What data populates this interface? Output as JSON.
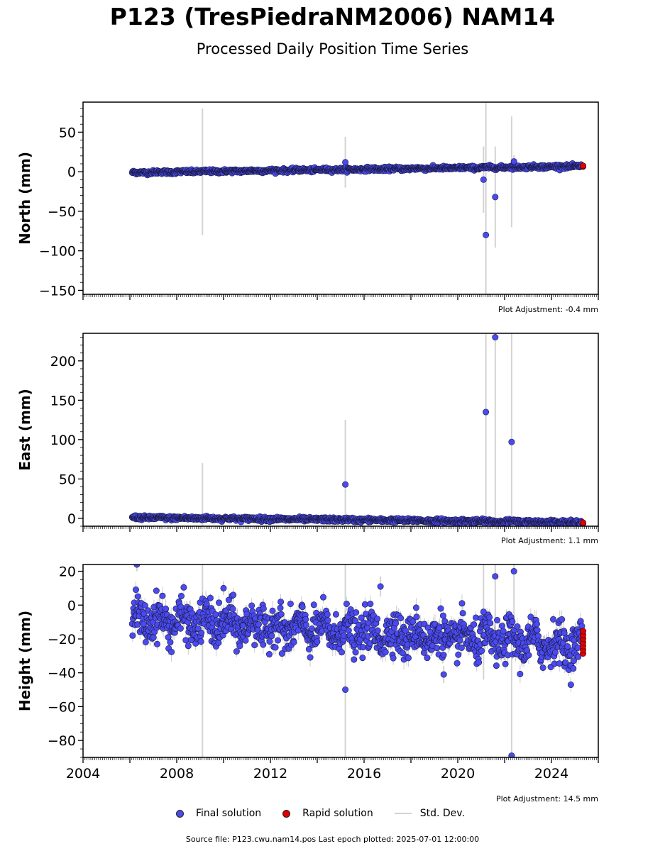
{
  "title": "P123 (TresPiedraNM2006) NAM14",
  "subtitle": "Processed Daily Position Time Series",
  "legend": {
    "final": "Final solution",
    "rapid": "Rapid solution",
    "stddev": "Std. Dev."
  },
  "footer": "Source file: P123.cwu.nam14.pos  Last epoch plotted: 2025-07-01 12:00:00",
  "colors": {
    "final": "#4a4af0",
    "rapid": "#e00000",
    "stddev": "#d3d3d3"
  },
  "chart_data": [
    {
      "type": "scatter",
      "ylabel": "North (mm)",
      "xlim": [
        2004.0,
        2026.0
      ],
      "ylim": [
        -155,
        88
      ],
      "yticks": [
        50,
        0,
        -50,
        -100,
        -150
      ],
      "ytick_labels": [
        "50",
        "0",
        "−50",
        "−100",
        "−150"
      ],
      "adjustment": "Plot Adjustment: -0.4 mm",
      "trend": {
        "start": [
          2006.1,
          -1
        ],
        "end": [
          2025.3,
          7
        ],
        "scatter_std": 1.2
      },
      "outliers": [
        {
          "x": 2015.2,
          "y": 12,
          "err": 32
        },
        {
          "x": 2021.1,
          "y": -10,
          "err": 42
        },
        {
          "x": 2021.2,
          "y": -80,
          "err": 170
        },
        {
          "x": 2021.6,
          "y": -32,
          "err": 64
        },
        {
          "x": 2022.4,
          "y": 13,
          "err": 8
        }
      ],
      "errorbars_only": [
        {
          "x": 2009.1,
          "y": 0,
          "err": 80
        },
        {
          "x": 2022.3,
          "y": 0,
          "err": 70
        }
      ],
      "rapid": {
        "x": 2025.35,
        "y": 7,
        "count": 4
      }
    },
    {
      "type": "scatter",
      "ylabel": "East (mm)",
      "xlim": [
        2004.0,
        2026.0
      ],
      "ylim": [
        -10,
        235
      ],
      "yticks": [
        200,
        150,
        100,
        50,
        0
      ],
      "ytick_labels": [
        "200",
        "150",
        "100",
        "50",
        "0"
      ],
      "adjustment": "Plot Adjustment: 1.1 mm",
      "trend": {
        "start": [
          2006.1,
          1
        ],
        "end": [
          2025.3,
          -5
        ],
        "scatter_std": 1.3
      },
      "outliers": [
        {
          "x": 2015.2,
          "y": 43,
          "err": 82
        },
        {
          "x": 2021.2,
          "y": 135,
          "err": 140
        },
        {
          "x": 2021.6,
          "y": 230,
          "err": 240
        },
        {
          "x": 2022.3,
          "y": 97,
          "err": 240
        }
      ],
      "errorbars_only": [
        {
          "x": 2009.1,
          "y": 0,
          "err": 70
        }
      ],
      "rapid": {
        "x": 2025.35,
        "y": -6,
        "count": 4
      }
    },
    {
      "type": "scatter",
      "ylabel": "Height (mm)",
      "xlim": [
        2004.0,
        2026.0
      ],
      "ylim": [
        -90,
        24
      ],
      "yticks": [
        20,
        0,
        -20,
        -40,
        -60,
        -80
      ],
      "ytick_labels": [
        "20",
        "0",
        "−20",
        "−40",
        "−60",
        "−80"
      ],
      "xticks": [
        2004,
        2008,
        2012,
        2016,
        2020,
        2024
      ],
      "xtick_labels": [
        "2004",
        "2008",
        "2012",
        "2016",
        "2020",
        "2024"
      ],
      "adjustment": "Plot Adjustment: 14.5 mm",
      "trend": {
        "start": [
          2006.1,
          -8
        ],
        "end": [
          2025.3,
          -24
        ],
        "scatter_std": 6
      },
      "outliers": [
        {
          "x": 2006.3,
          "y": 24,
          "err": 4
        },
        {
          "x": 2010.0,
          "y": 10,
          "err": 4
        },
        {
          "x": 2015.2,
          "y": -50,
          "err": 90
        },
        {
          "x": 2016.7,
          "y": 11,
          "err": 6
        },
        {
          "x": 2019.4,
          "y": -41,
          "err": 5
        },
        {
          "x": 2021.1,
          "y": -4,
          "err": 40
        },
        {
          "x": 2021.6,
          "y": 17,
          "err": 40
        },
        {
          "x": 2022.3,
          "y": -89,
          "err": 80
        },
        {
          "x": 2022.4,
          "y": 20,
          "err": 40
        }
      ],
      "errorbars_only": [
        {
          "x": 2009.1,
          "y": -30,
          "err": 70
        }
      ],
      "rapid": {
        "x": 2025.35,
        "y": -22,
        "count": 7
      }
    }
  ]
}
